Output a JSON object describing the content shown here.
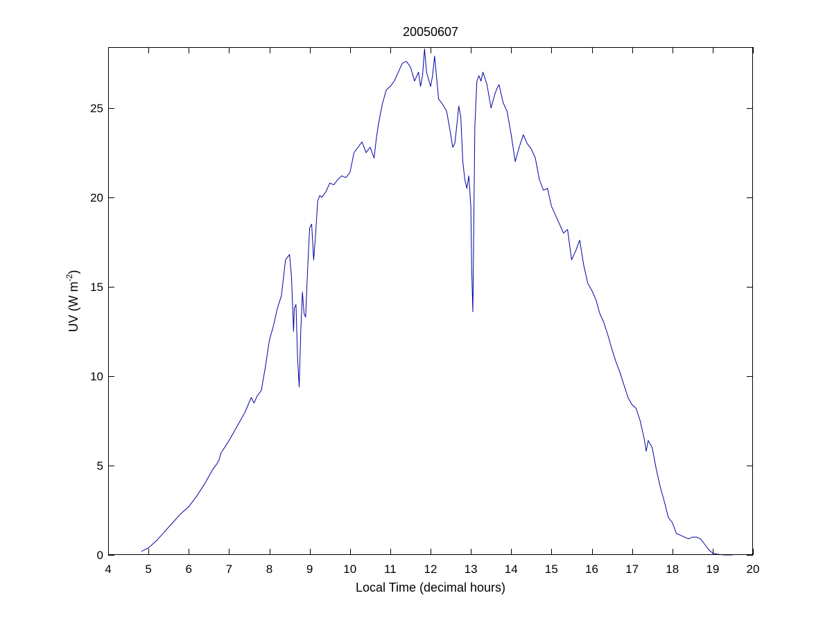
{
  "chart_data": {
    "type": "line",
    "title": "20050607",
    "xlabel": "Local Time (decimal hours)",
    "ylabel": {
      "prefix": "UV (W m",
      "superscript": "-2",
      "suffix": ")"
    },
    "xlim": [
      4,
      20
    ],
    "ylim": [
      0,
      28.4
    ],
    "xticks": [
      "4",
      "5",
      "6",
      "7",
      "8",
      "9",
      "10",
      "11",
      "12",
      "13",
      "14",
      "15",
      "16",
      "17",
      "18",
      "19",
      "20"
    ],
    "yticks": [
      "0",
      "5",
      "10",
      "15",
      "20",
      "25"
    ],
    "grid": false,
    "line_color": "#0000a0",
    "series": [
      {
        "x": [
          4.83,
          5.0,
          5.2,
          5.4,
          5.6,
          5.8,
          6.0,
          6.2,
          6.4,
          6.6,
          6.7,
          6.75,
          6.8,
          7.0,
          7.2,
          7.4,
          7.55,
          7.62,
          7.7,
          7.8,
          7.9,
          8.0,
          8.1,
          8.2,
          8.3,
          8.4,
          8.5,
          8.55,
          8.6,
          8.62,
          8.66,
          8.7,
          8.74,
          8.78,
          8.82,
          8.86,
          8.9,
          8.95,
          9.0,
          9.05,
          9.1,
          9.15,
          9.2,
          9.25,
          9.3,
          9.4,
          9.5,
          9.6,
          9.7,
          9.8,
          9.9,
          10.0,
          10.1,
          10.2,
          10.3,
          10.4,
          10.5,
          10.6,
          10.65,
          10.7,
          10.8,
          10.9,
          11.0,
          11.1,
          11.2,
          11.3,
          11.4,
          11.5,
          11.6,
          11.7,
          11.75,
          11.8,
          11.85,
          11.9,
          12.0,
          12.05,
          12.1,
          12.2,
          12.3,
          12.4,
          12.5,
          12.55,
          12.6,
          12.65,
          12.7,
          12.75,
          12.8,
          12.85,
          12.9,
          12.95,
          13.0,
          13.02,
          13.05,
          13.07,
          13.1,
          13.15,
          13.2,
          13.25,
          13.3,
          13.4,
          13.5,
          13.6,
          13.65,
          13.7,
          13.8,
          13.9,
          14.0,
          14.1,
          14.2,
          14.3,
          14.4,
          14.5,
          14.6,
          14.7,
          14.8,
          14.9,
          15.0,
          15.1,
          15.2,
          15.3,
          15.4,
          15.5,
          15.6,
          15.7,
          15.8,
          15.9,
          16.0,
          16.1,
          16.2,
          16.3,
          16.4,
          16.5,
          16.6,
          16.7,
          16.8,
          16.9,
          17.0,
          17.1,
          17.2,
          17.3,
          17.35,
          17.4,
          17.5,
          17.6,
          17.7,
          17.8,
          17.9,
          18.0,
          18.1,
          18.2,
          18.3,
          18.4,
          18.5,
          18.6,
          18.7,
          18.8,
          18.9,
          19.0,
          19.1,
          19.2,
          19.3,
          19.5
        ],
        "y": [
          0.2,
          0.4,
          0.8,
          1.3,
          1.8,
          2.3,
          2.7,
          3.3,
          4.0,
          4.8,
          5.1,
          5.3,
          5.7,
          6.4,
          7.2,
          8.0,
          8.8,
          8.5,
          8.9,
          9.2,
          10.5,
          12.0,
          12.8,
          13.8,
          14.5,
          16.5,
          16.8,
          15.5,
          12.5,
          13.8,
          14.0,
          11.0,
          9.4,
          12.5,
          14.7,
          13.5,
          13.3,
          16.0,
          18.3,
          18.5,
          16.5,
          18.0,
          19.8,
          20.1,
          20.0,
          20.3,
          20.8,
          20.7,
          21.0,
          21.2,
          21.1,
          21.4,
          22.5,
          22.8,
          23.1,
          22.5,
          22.8,
          22.2,
          23.2,
          24.0,
          25.2,
          26.0,
          26.2,
          26.5,
          27.0,
          27.5,
          27.6,
          27.3,
          26.5,
          27.0,
          26.2,
          26.8,
          28.3,
          27.0,
          26.2,
          26.8,
          27.9,
          25.5,
          25.2,
          24.8,
          23.5,
          22.8,
          23.0,
          24.0,
          25.1,
          24.5,
          22.0,
          21.0,
          20.5,
          21.2,
          19.5,
          16.0,
          13.6,
          18.0,
          24.0,
          26.5,
          26.8,
          26.5,
          27.0,
          26.3,
          25.0,
          25.8,
          26.1,
          26.3,
          25.3,
          24.8,
          23.5,
          22.0,
          22.8,
          23.5,
          23.0,
          22.7,
          22.2,
          21.0,
          20.4,
          20.5,
          19.5,
          19.0,
          18.5,
          18.0,
          18.2,
          16.5,
          17.0,
          17.6,
          16.2,
          15.2,
          14.8,
          14.3,
          13.5,
          13.0,
          12.3,
          11.5,
          10.8,
          10.2,
          9.5,
          8.8,
          8.4,
          8.2,
          7.5,
          6.5,
          5.8,
          6.4,
          6.0,
          4.8,
          3.8,
          3.0,
          2.1,
          1.8,
          1.2,
          1.1,
          1.0,
          0.9,
          1.0,
          1.0,
          0.9,
          0.6,
          0.3,
          0.1,
          0.05,
          0.02,
          0.0,
          0.0
        ]
      }
    ]
  }
}
